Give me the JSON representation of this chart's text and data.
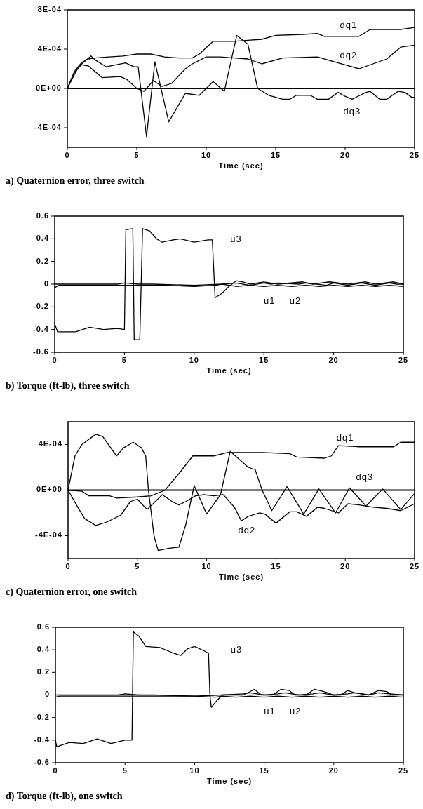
{
  "chart_data": [
    {
      "type": "line",
      "title": "a) Quaternion error, three switch",
      "xlabel": "Time (sec)",
      "xlim": [
        0,
        25
      ],
      "xticks": [
        0,
        5,
        10,
        15,
        20,
        25
      ],
      "ylim": [
        -0.0006,
        0.0008
      ],
      "yticks": [
        {
          "value": 0.0008,
          "label": "8E-04"
        },
        {
          "value": 0.0004,
          "label": "4E-04"
        },
        {
          "value": 0,
          "label": "0E+00"
        },
        {
          "value": -0.0004,
          "label": "-4E-04"
        }
      ],
      "ref_lines": [
        {
          "axis": "y",
          "value": 0
        }
      ],
      "series": [
        {
          "name": "dq1",
          "color": "#000000",
          "x": [
            0,
            0.5,
            1,
            1.5,
            2,
            3,
            4,
            5,
            6,
            7,
            8,
            9,
            9.5,
            10.5,
            12,
            13,
            14,
            15,
            17,
            18,
            18.5,
            21,
            21.8,
            24,
            25
          ],
          "values": [
            0,
            0.00017,
            0.00026,
            0.0003,
            0.00031,
            0.00032,
            0.00033,
            0.00035,
            0.00035,
            0.00032,
            0.00031,
            0.00031,
            0.00035,
            0.00048,
            0.00048,
            0.00049,
            0.0005,
            0.00054,
            0.00055,
            0.00056,
            0.00053,
            0.00053,
            0.0006,
            0.0006,
            0.00062
          ]
        },
        {
          "name": "dq2",
          "color": "#000000",
          "x": [
            0,
            0.5,
            1,
            1.5,
            2.5,
            3.8,
            4.3,
            5,
            5.5,
            6.2,
            6.8,
            7.5,
            8.5,
            9,
            10,
            11,
            12,
            13,
            14,
            15.5,
            18,
            19.5,
            20,
            21,
            22,
            23,
            24,
            25
          ],
          "values": [
            0,
            0.00016,
            0.00024,
            0.00023,
            0.00011,
            0.00012,
            9e-05,
            0,
            -3e-05,
            8e-05,
            2e-05,
            5e-05,
            0.0002,
            0.00025,
            0.00032,
            0.00032,
            0.00031,
            0.0003,
            0.00025,
            0.00031,
            0.00032,
            0.00026,
            0.00024,
            0.0002,
            0.00025,
            0.0003,
            0.00042,
            0.00044
          ]
        },
        {
          "name": "dq3",
          "color": "#000000",
          "x": [
            0,
            0.8,
            1.7,
            2,
            2.8,
            3.5,
            4.2,
            4.8,
            5.1,
            5.7,
            6.3,
            7.3,
            8.5,
            9.5,
            10.5,
            11.3,
            12.2,
            13,
            13.7,
            14.5,
            15.5,
            16,
            16.5,
            17.5,
            18,
            18.8,
            19.5,
            20,
            20.5,
            21.5,
            21.8,
            22.5,
            23,
            23.8,
            24.3,
            24.8,
            25
          ],
          "values": [
            0,
            0.00022,
            0.00033,
            0.00029,
            0.00022,
            0.00024,
            0.00026,
            0.00022,
            0.00022,
            -0.00049,
            0.00027,
            -0.00034,
            -5e-05,
            -7e-05,
            7e-05,
            -3e-05,
            0.00054,
            0.00045,
            0,
            -7e-05,
            -0.00011,
            -0.00011,
            -7e-05,
            -7e-05,
            -0.00011,
            -0.00011,
            -4e-05,
            -8e-05,
            -0.00011,
            -4e-05,
            -3e-05,
            -0.00011,
            -0.00011,
            -3e-05,
            -4e-05,
            -9e-05,
            -9e-05
          ]
        }
      ]
    },
    {
      "type": "line",
      "title": "b) Torque (ft-lb), three switch",
      "xlabel": "Time (sec)",
      "xlim": [
        0,
        25
      ],
      "xticks": [
        0,
        5,
        10,
        15,
        20,
        25
      ],
      "ylim": [
        -0.6,
        0.6
      ],
      "yticks": [
        0.6,
        0.4,
        0.2,
        0,
        -0.2,
        -0.4,
        -0.6
      ],
      "series": [
        {
          "name": "u1",
          "color": "#000000",
          "x": [
            0,
            0.3,
            2,
            4,
            5,
            6,
            8,
            10,
            11.5,
            12,
            13,
            14,
            15,
            16,
            17,
            18,
            19,
            20,
            21,
            22,
            23,
            24,
            25
          ],
          "values": [
            -0.03,
            -0.01,
            -0.01,
            -0.01,
            -0.01,
            -0.01,
            -0.01,
            -0.02,
            -0.01,
            0,
            -0.02,
            -0.01,
            -0.02,
            -0.01,
            -0.02,
            -0.01,
            -0.02,
            -0.01,
            -0.02,
            -0.01,
            -0.02,
            -0.01,
            -0.02
          ]
        },
        {
          "name": "u2",
          "color": "#000000",
          "x": [
            0,
            4.5,
            5,
            6,
            7,
            10,
            12,
            13,
            14,
            15,
            15.5,
            16,
            17.5,
            18,
            19.5,
            20,
            21,
            22,
            22.5,
            23,
            24,
            24.5,
            25
          ],
          "values": [
            0,
            0,
            0.01,
            0,
            0,
            -0.01,
            0,
            0.01,
            -0.01,
            0.01,
            0,
            0.01,
            0,
            0.01,
            -0.01,
            0.01,
            -0.01,
            0.01,
            0,
            -0.01,
            0.01,
            0,
            0
          ]
        },
        {
          "name": "u3",
          "color": "#000000",
          "x": [
            0,
            0.2,
            1.5,
            2,
            2.5,
            3.5,
            4.5,
            5,
            5.1,
            5.6,
            5.7,
            6.1,
            6.3,
            6.8,
            7.3,
            7.7,
            8.5,
            9,
            10,
            11,
            11.3,
            11.5,
            12,
            12.5,
            13,
            13.5,
            14,
            15,
            16,
            17.8,
            18.5,
            19.7,
            21,
            22.3,
            23,
            24.3,
            25
          ],
          "values": [
            -0.35,
            -0.42,
            -0.42,
            -0.4,
            -0.38,
            -0.4,
            -0.39,
            -0.4,
            0.48,
            0.49,
            -0.49,
            -0.49,
            0.49,
            0.47,
            0.4,
            0.37,
            0.39,
            0.4,
            0.37,
            0.39,
            0.39,
            -0.12,
            -0.08,
            -0.02,
            0.03,
            0.02,
            0,
            0.02,
            0,
            0.02,
            0,
            0.02,
            0,
            0.02,
            0,
            0.02,
            0
          ]
        }
      ]
    },
    {
      "type": "line",
      "title": "c) Quaternion error, one switch",
      "xlabel": "Time (sec)",
      "xlim": [
        0,
        25
      ],
      "xticks": [
        0,
        5,
        10,
        15,
        20,
        25
      ],
      "ylim": [
        -0.0006,
        0.0006
      ],
      "yticks": [
        {
          "value": 0.0004,
          "label": "4E-04"
        },
        {
          "value": 0,
          "label": "0E+00"
        },
        {
          "value": -0.0004,
          "label": "-4E-04"
        }
      ],
      "ref_lines": [
        {
          "axis": "y",
          "value": 0
        }
      ],
      "series": [
        {
          "name": "dq1",
          "color": "#000000",
          "x": [
            0,
            1,
            1.5,
            3,
            3.5,
            5,
            6,
            7,
            8.1,
            9,
            10.5,
            11.5,
            14,
            16,
            16.5,
            18.5,
            19,
            19.5,
            21,
            23.5,
            24,
            25
          ],
          "values": [
            0,
            -1e-05,
            -5e-05,
            -5e-05,
            -7e-05,
            -6e-05,
            -5e-05,
            0,
            0.00016,
            0.0003,
            0.0003,
            0.00033,
            0.00033,
            0.00032,
            0.00029,
            0.00028,
            0.0003,
            0.00039,
            0.00038,
            0.00038,
            0.00042,
            0.00042
          ]
        },
        {
          "name": "dq2",
          "color": "#000000",
          "x": [
            0,
            0.7,
            1.2,
            2,
            2.8,
            3.8,
            4.5,
            5,
            5.7,
            6.3,
            6.8,
            7.5,
            8,
            8.5,
            9.2,
            9.8,
            10.5,
            11.2,
            12,
            12.5,
            13,
            13.8,
            14.2,
            15,
            16,
            16.5,
            17.2,
            18,
            18.5,
            19.5,
            20.2,
            21,
            22,
            23,
            24,
            25
          ],
          "values": [
            0,
            -0.00015,
            -0.00025,
            -0.00031,
            -0.00028,
            -0.00022,
            -0.0001,
            -8e-05,
            -0.00017,
            -0.0001,
            -4e-05,
            -0.0001,
            -0.00013,
            -0.0001,
            -5e-05,
            -4e-05,
            -5e-05,
            -4e-05,
            -0.00015,
            -0.00027,
            -0.00023,
            -0.0002,
            -0.00021,
            -0.00029,
            -0.00019,
            -0.00019,
            -0.00023,
            -0.00015,
            -0.00016,
            -0.0002,
            -0.00012,
            -0.00013,
            -0.00015,
            -0.00016,
            -0.00018,
            -0.00012
          ]
        },
        {
          "name": "dq3",
          "color": "#000000",
          "x": [
            0,
            0.5,
            1,
            2,
            2.5,
            3.5,
            4,
            4.7,
            5.3,
            5.6,
            5.8,
            6.2,
            6.5,
            7.3,
            8,
            8.5,
            9.1,
            10,
            11,
            11.7,
            13,
            13.5,
            14,
            14.7,
            15.8,
            17,
            18.1,
            19.3,
            20.3,
            21.5,
            22.7,
            24,
            25
          ],
          "values": [
            0,
            0.0003,
            0.0004,
            0.00049,
            0.00047,
            0.0003,
            0.00037,
            0.00042,
            0.00037,
            0.0003,
            0,
            -0.0004,
            -0.00053,
            -0.00051,
            -0.0005,
            -0.0003,
            4e-05,
            -0.00021,
            -4e-05,
            0.00034,
            0.0002,
            0.00018,
            0,
            -0.00018,
            3e-05,
            -0.00021,
            1e-05,
            -0.0002,
            2e-05,
            -0.00014,
            1e-05,
            -0.00017,
            -3e-05
          ]
        }
      ]
    },
    {
      "type": "line",
      "title": "d) Torque (ft-lb), one switch",
      "xlabel": "Time (sec)",
      "xlim": [
        0,
        25
      ],
      "xticks": [
        0,
        5,
        10,
        15,
        20,
        25
      ],
      "ylim": [
        -0.6,
        0.6
      ],
      "yticks": [
        0.6,
        0.4,
        0.2,
        0,
        -0.2,
        -0.4,
        -0.6
      ],
      "series": [
        {
          "name": "u1",
          "color": "#000000",
          "x": [
            0,
            0.3,
            2,
            4,
            5,
            6,
            8,
            10,
            11.5,
            12,
            13,
            14,
            15,
            16,
            17,
            18,
            19,
            20,
            21,
            22,
            23,
            24,
            25
          ],
          "values": [
            -0.02,
            -0.01,
            -0.01,
            -0.01,
            -0.01,
            -0.01,
            -0.01,
            -0.01,
            -0.02,
            -0.01,
            -0.02,
            -0.01,
            -0.02,
            -0.01,
            -0.02,
            -0.01,
            -0.02,
            -0.01,
            -0.02,
            -0.01,
            -0.02,
            -0.01,
            -0.02
          ]
        },
        {
          "name": "u2",
          "color": "#000000",
          "x": [
            0,
            4.5,
            5,
            6,
            7,
            10,
            12,
            13.5,
            14,
            15,
            16,
            16.5,
            17.5,
            18.5,
            19,
            20,
            21,
            21.5,
            22.5,
            23.2,
            24,
            25
          ],
          "values": [
            0,
            0,
            0.01,
            0,
            0,
            -0.01,
            0,
            0.01,
            0.02,
            0,
            0.01,
            0.02,
            0,
            0.01,
            0.02,
            0,
            0.01,
            0.02,
            0,
            0.02,
            0.01,
            0
          ]
        },
        {
          "name": "u3",
          "color": "#000000",
          "x": [
            0,
            0.1,
            0.3,
            1,
            2,
            3,
            4,
            5,
            5.5,
            5.6,
            6,
            6.5,
            7.5,
            8.5,
            9,
            9.5,
            10,
            10.7,
            11,
            11.1,
            11.2,
            11.6,
            12,
            13.5,
            14.3,
            14.8,
            15.6,
            16.2,
            16.8,
            17.2,
            18,
            18.6,
            19.3,
            20,
            20.5,
            21,
            21.5,
            22.5,
            23.2,
            23.8,
            24.2,
            25
          ],
          "values": [
            -0.4,
            -0.46,
            -0.45,
            -0.42,
            -0.43,
            -0.39,
            -0.43,
            -0.4,
            -0.4,
            0.56,
            0.52,
            0.43,
            0.42,
            0.37,
            0.35,
            0.41,
            0.43,
            0.39,
            0.37,
            0,
            -0.11,
            -0.05,
            0,
            0,
            0.05,
            0,
            0,
            0.05,
            0.04,
            0,
            0,
            0.05,
            0.03,
            0,
            0,
            0.04,
            0.02,
            0,
            0.04,
            0.03,
            0,
            0
          ]
        }
      ]
    }
  ]
}
